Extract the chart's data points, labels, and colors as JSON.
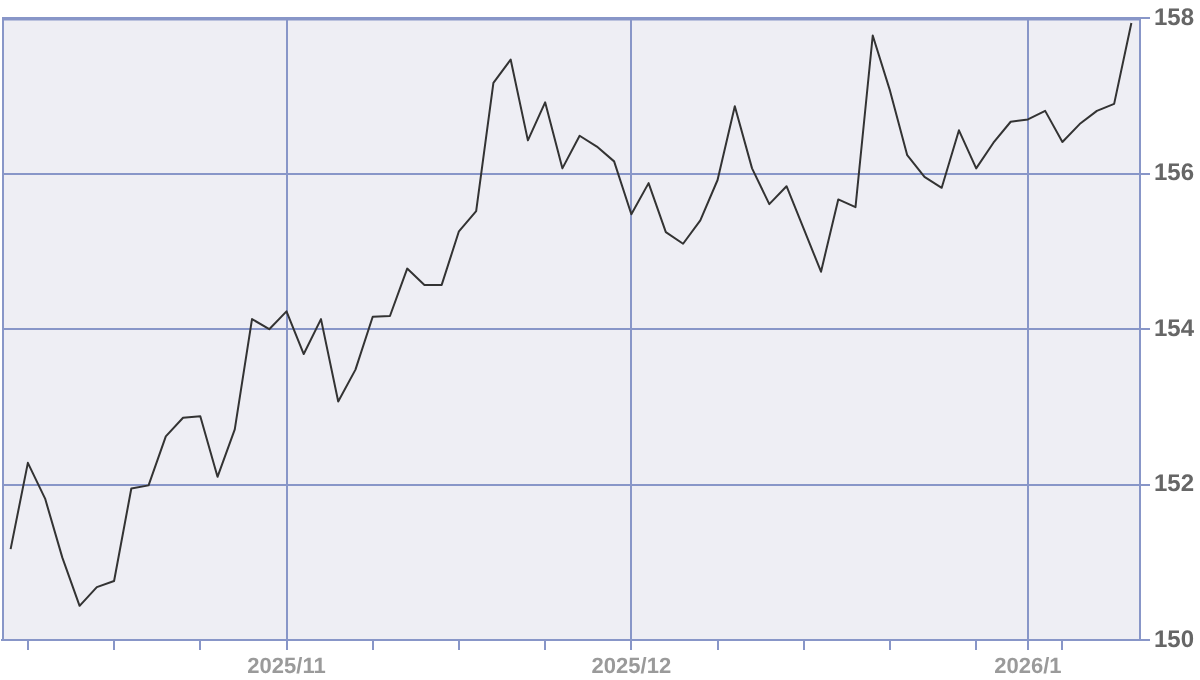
{
  "chart_data": {
    "type": "line",
    "categories": [
      null,
      null,
      null,
      null,
      null,
      null,
      null,
      null,
      null,
      null,
      null,
      null,
      null,
      null,
      null,
      null,
      "2025/11",
      null,
      null,
      null,
      null,
      null,
      null,
      null,
      null,
      null,
      null,
      null,
      null,
      null,
      null,
      null,
      null,
      null,
      null,
      null,
      "2025/12",
      null,
      null,
      null,
      null,
      null,
      null,
      null,
      null,
      null,
      null,
      null,
      null,
      null,
      null,
      null,
      null,
      null,
      null,
      null,
      null,
      null,
      null,
      "2026/1",
      null,
      null,
      null,
      null,
      null,
      null
    ],
    "values": [
      151.17,
      152.28,
      151.82,
      151.06,
      150.44,
      150.68,
      150.76,
      151.95,
      151.99,
      152.62,
      152.86,
      152.88,
      152.1,
      152.71,
      154.13,
      154.0,
      154.23,
      153.68,
      154.13,
      153.07,
      153.48,
      154.16,
      154.17,
      154.78,
      154.57,
      154.57,
      155.26,
      155.52,
      157.17,
      157.47,
      156.43,
      156.92,
      156.07,
      156.49,
      156.35,
      156.16,
      155.48,
      155.88,
      155.25,
      155.1,
      155.4,
      155.92,
      156.87,
      156.07,
      155.61,
      155.84,
      155.29,
      154.74,
      155.67,
      155.57,
      157.78,
      157.07,
      156.24,
      155.96,
      155.82,
      156.56,
      156.07,
      156.4,
      156.67,
      156.7,
      156.81,
      156.41,
      156.64,
      156.81,
      156.9,
      157.94
    ],
    "color": "#333333",
    "ylim": [
      150,
      158
    ],
    "yticks": [
      150,
      152,
      154,
      156,
      158
    ],
    "grid": true,
    "marker": "none",
    "legend": false
  }
}
